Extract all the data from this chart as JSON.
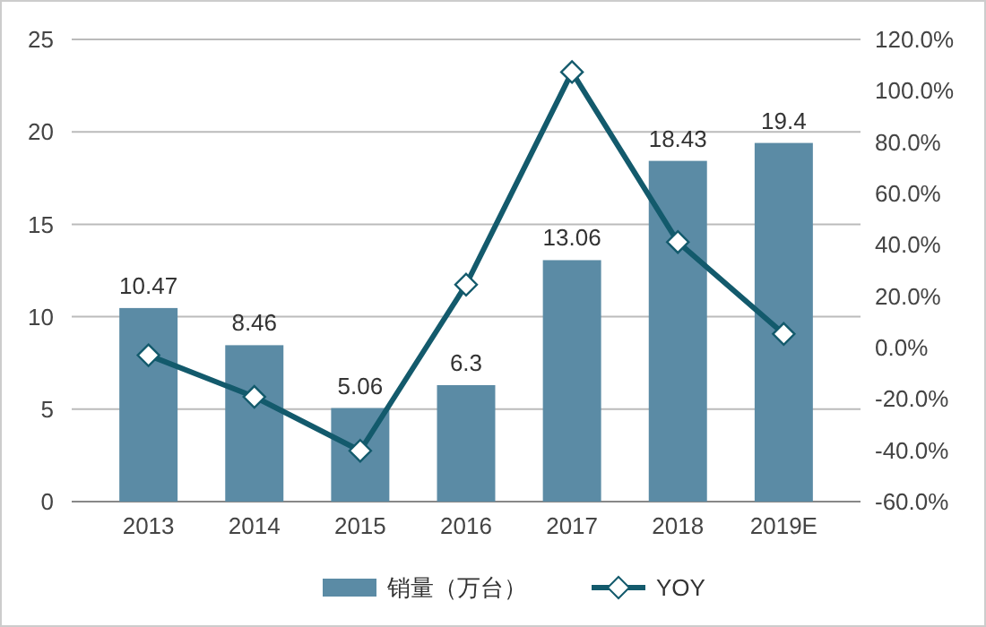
{
  "chart_data": {
    "type": "bar",
    "categories": [
      "2013",
      "2014",
      "2015",
      "2016",
      "2017",
      "2018",
      "2019E"
    ],
    "series": [
      {
        "name": "销量（万台）",
        "color": "#5b8ba5",
        "values": [
          10.47,
          8.46,
          5.06,
          6.3,
          13.06,
          18.43,
          19.4
        ],
        "value_labels": [
          "10.47",
          "8.46",
          "5.06",
          "6.3",
          "13.06",
          "18.43",
          "19.4"
        ]
      },
      {
        "name": "YOY",
        "type": "line",
        "axis": "y2",
        "color": "#135a6c",
        "marker": "diamond",
        "values": [
          -3,
          -19.2,
          -40.2,
          24.5,
          107.3,
          41.1,
          5.3
        ]
      }
    ],
    "ylim": [
      0,
      25
    ],
    "yticks": [
      0,
      5,
      10,
      15,
      20,
      25
    ],
    "y2lim": [
      -60,
      120
    ],
    "y2ticks": [
      {
        "value": -60,
        "label": "-60.0%"
      },
      {
        "value": -40,
        "label": "-40.0%"
      },
      {
        "value": -20,
        "label": "-20.0%"
      },
      {
        "value": 0,
        "label": "0.0%"
      },
      {
        "value": 20,
        "label": "20.0%"
      },
      {
        "value": 40,
        "label": "40.0%"
      },
      {
        "value": 60,
        "label": "60.0%"
      },
      {
        "value": 80,
        "label": "80.0%"
      },
      {
        "value": 100,
        "label": "100.0%"
      },
      {
        "value": 120,
        "label": "120.0%"
      }
    ],
    "grid": "y",
    "legend": "bottom"
  }
}
